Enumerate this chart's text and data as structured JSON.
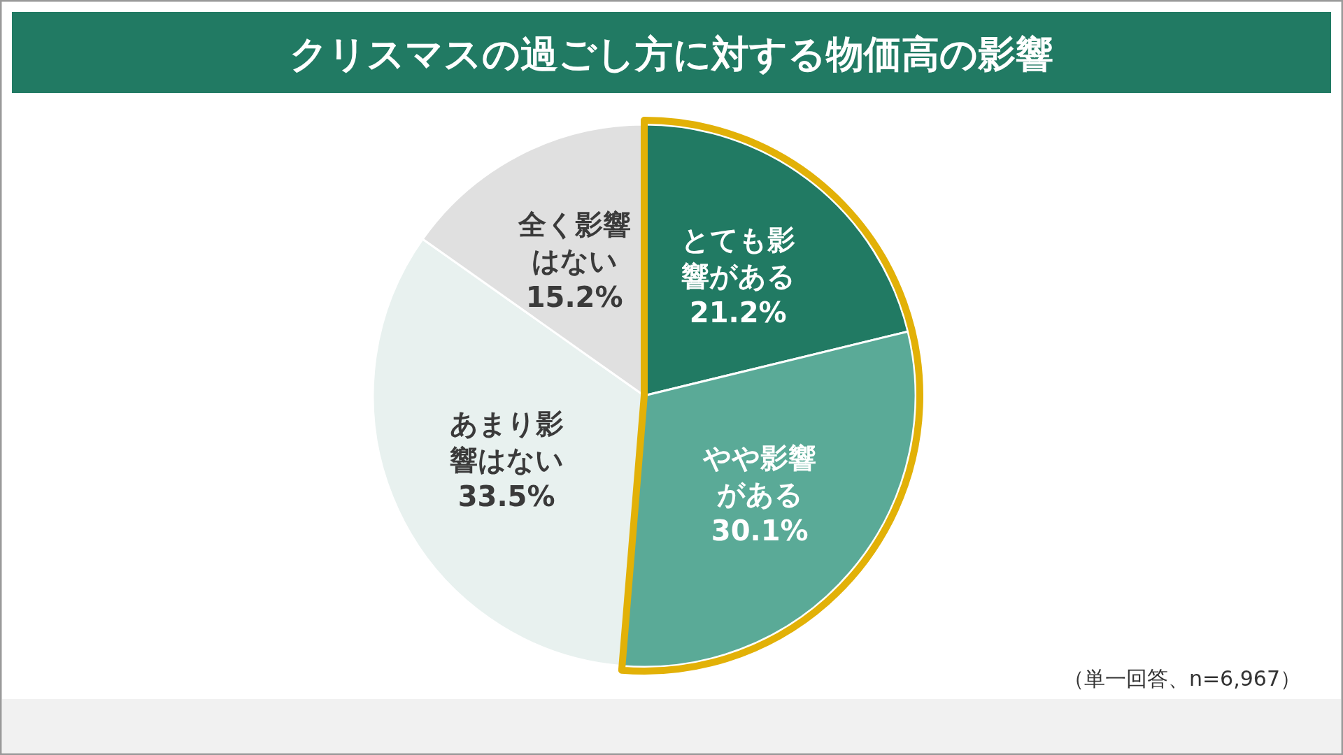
{
  "chart_data": {
    "type": "pie",
    "title": "クリスマスの過ごし方に対する物価高の影響",
    "categories": [
      "とても影響がある",
      "やや影響がある",
      "あまり影響はない",
      "全く影響はない"
    ],
    "values": [
      21.2,
      30.1,
      33.5,
      15.2
    ],
    "colors": [
      "#217a63",
      "#5aaa97",
      "#e8f1ef",
      "#e0e0e0"
    ],
    "value_labels": [
      "21.2%",
      "30.1%",
      "33.5%",
      "15.2%"
    ],
    "annotations": [
      "（単一回答、n=6,967）"
    ]
  }
}
